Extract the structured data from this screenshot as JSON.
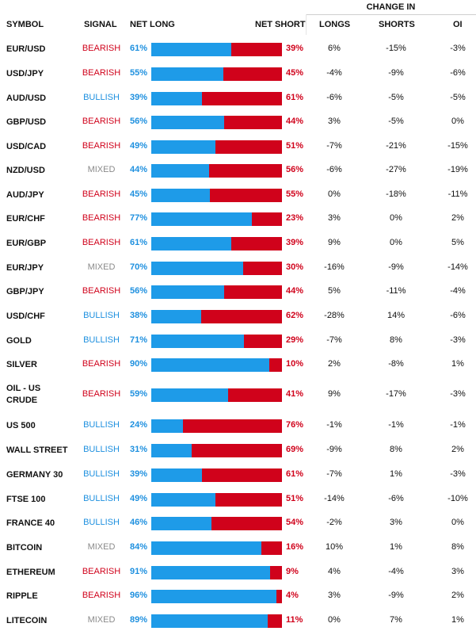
{
  "headers": {
    "symbol": "SYMBOL",
    "signal": "SIGNAL",
    "net_long": "NET LONG",
    "net_short": "NET SHORT",
    "change_in": "CHANGE IN",
    "longs": "LONGS",
    "shorts": "SHORTS",
    "oi": "OI"
  },
  "colors": {
    "bearish": "#d0021b",
    "bullish": "#1e90df",
    "mixed": "#8a8a8a",
    "long_bar": "#1e9be8",
    "short_bar": "#d0021b"
  },
  "rows": [
    {
      "symbol": "EUR/USD",
      "signal": "BEARISH",
      "net_long": "61%",
      "net_short": "39%",
      "longs": "6%",
      "shorts": "-15%",
      "oi": "-3%"
    },
    {
      "symbol": "USD/JPY",
      "signal": "BEARISH",
      "net_long": "55%",
      "net_short": "45%",
      "longs": "-4%",
      "shorts": "-9%",
      "oi": "-6%"
    },
    {
      "symbol": "AUD/USD",
      "signal": "BULLISH",
      "net_long": "39%",
      "net_short": "61%",
      "longs": "-6%",
      "shorts": "-5%",
      "oi": "-5%"
    },
    {
      "symbol": "GBP/USD",
      "signal": "BEARISH",
      "net_long": "56%",
      "net_short": "44%",
      "longs": "3%",
      "shorts": "-5%",
      "oi": "0%"
    },
    {
      "symbol": "USD/CAD",
      "signal": "BEARISH",
      "net_long": "49%",
      "net_short": "51%",
      "longs": "-7%",
      "shorts": "-21%",
      "oi": "-15%"
    },
    {
      "symbol": "NZD/USD",
      "signal": "MIXED",
      "net_long": "44%",
      "net_short": "56%",
      "longs": "-6%",
      "shorts": "-27%",
      "oi": "-19%"
    },
    {
      "symbol": "AUD/JPY",
      "signal": "BEARISH",
      "net_long": "45%",
      "net_short": "55%",
      "longs": "0%",
      "shorts": "-18%",
      "oi": "-11%"
    },
    {
      "symbol": "EUR/CHF",
      "signal": "BEARISH",
      "net_long": "77%",
      "net_short": "23%",
      "longs": "3%",
      "shorts": "0%",
      "oi": "2%"
    },
    {
      "symbol": "EUR/GBP",
      "signal": "BEARISH",
      "net_long": "61%",
      "net_short": "39%",
      "longs": "9%",
      "shorts": "0%",
      "oi": "5%"
    },
    {
      "symbol": "EUR/JPY",
      "signal": "MIXED",
      "net_long": "70%",
      "net_short": "30%",
      "longs": "-16%",
      "shorts": "-9%",
      "oi": "-14%"
    },
    {
      "symbol": "GBP/JPY",
      "signal": "BEARISH",
      "net_long": "56%",
      "net_short": "44%",
      "longs": "5%",
      "shorts": "-11%",
      "oi": "-4%"
    },
    {
      "symbol": "USD/CHF",
      "signal": "BULLISH",
      "net_long": "38%",
      "net_short": "62%",
      "longs": "-28%",
      "shorts": "14%",
      "oi": "-6%"
    },
    {
      "symbol": "GOLD",
      "signal": "BULLISH",
      "net_long": "71%",
      "net_short": "29%",
      "longs": "-7%",
      "shorts": "8%",
      "oi": "-3%"
    },
    {
      "symbol": "SILVER",
      "signal": "BEARISH",
      "net_long": "90%",
      "net_short": "10%",
      "longs": "2%",
      "shorts": "-8%",
      "oi": "1%"
    },
    {
      "symbol": "OIL - US CRUDE",
      "signal": "BEARISH",
      "net_long": "59%",
      "net_short": "41%",
      "longs": "9%",
      "shorts": "-17%",
      "oi": "-3%"
    },
    {
      "symbol": "US 500",
      "signal": "BULLISH",
      "net_long": "24%",
      "net_short": "76%",
      "longs": "-1%",
      "shorts": "-1%",
      "oi": "-1%"
    },
    {
      "symbol": "WALL STREET",
      "signal": "BULLISH",
      "net_long": "31%",
      "net_short": "69%",
      "longs": "-9%",
      "shorts": "8%",
      "oi": "2%"
    },
    {
      "symbol": "GERMANY 30",
      "signal": "BULLISH",
      "net_long": "39%",
      "net_short": "61%",
      "longs": "-7%",
      "shorts": "1%",
      "oi": "-3%"
    },
    {
      "symbol": "FTSE 100",
      "signal": "BULLISH",
      "net_long": "49%",
      "net_short": "51%",
      "longs": "-14%",
      "shorts": "-6%",
      "oi": "-10%"
    },
    {
      "symbol": "FRANCE 40",
      "signal": "BULLISH",
      "net_long": "46%",
      "net_short": "54%",
      "longs": "-2%",
      "shorts": "3%",
      "oi": "0%"
    },
    {
      "symbol": "BITCOIN",
      "signal": "MIXED",
      "net_long": "84%",
      "net_short": "16%",
      "longs": "10%",
      "shorts": "1%",
      "oi": "8%"
    },
    {
      "symbol": "ETHEREUM",
      "signal": "BEARISH",
      "net_long": "91%",
      "net_short": "9%",
      "longs": "4%",
      "shorts": "-4%",
      "oi": "3%"
    },
    {
      "symbol": "RIPPLE",
      "signal": "BEARISH",
      "net_long": "96%",
      "net_short": "4%",
      "longs": "3%",
      "shorts": "-9%",
      "oi": "2%"
    },
    {
      "symbol": "LITECOIN",
      "signal": "MIXED",
      "net_long": "89%",
      "net_short": "11%",
      "longs": "0%",
      "shorts": "7%",
      "oi": "1%"
    }
  ]
}
